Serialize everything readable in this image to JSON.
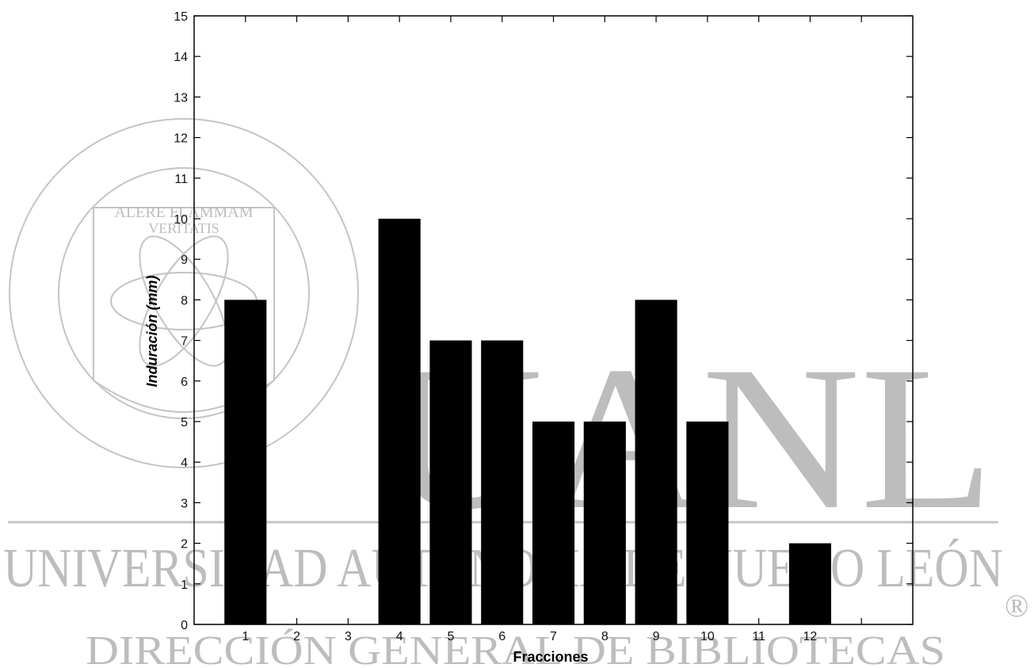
{
  "chart_data": {
    "type": "bar",
    "categories": [
      "1",
      "2",
      "3",
      "4",
      "5",
      "6",
      "7",
      "8",
      "9",
      "10",
      "11",
      "12"
    ],
    "values": [
      8,
      0,
      0,
      10,
      7,
      7,
      5,
      5,
      8,
      5,
      0,
      2
    ],
    "title": "",
    "xlabel": "Fracciones",
    "ylabel": "Induración (mm)",
    "ylim": [
      0,
      15
    ],
    "yticks": [
      "0",
      "1",
      "2",
      "3",
      "4",
      "5",
      "6",
      "7",
      "8",
      "9",
      "10",
      "11",
      "12",
      "13",
      "14",
      "15"
    ],
    "grid": false
  },
  "watermark": {
    "seal_text": "UNIVERSIDAD AUTÓNOMA DE NUEVO LEÓN",
    "motto_line1": "ALERE FLAMMAM",
    "motto_line2": "VERITATIS",
    "big_letters": "UANL",
    "university_line": "UNIVERSIDAD AUTÓNOMA DE NUEVO LEÓN",
    "registered_mark": "®",
    "directorate_line": "DIRECCIÓN GENERAL DE BIBLIOTECAS"
  }
}
